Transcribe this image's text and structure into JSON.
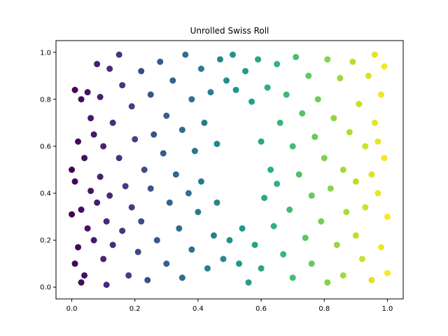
{
  "chart_data": {
    "type": "scatter",
    "title": "Unrolled Swiss Roll",
    "xlabel": "",
    "ylabel": "",
    "xlim": [
      -0.05,
      1.05
    ],
    "ylim": [
      -0.05,
      1.05
    ],
    "xticks": [
      "0.0",
      "0.2",
      "0.4",
      "0.6",
      "0.8",
      "1.0"
    ],
    "yticks": [
      "0.0",
      "0.2",
      "0.4",
      "0.6",
      "0.8",
      "1.0"
    ],
    "grid": false,
    "colormap": "viridis",
    "color_by": "x",
    "hole": {
      "x": [
        0.47,
        0.59
      ],
      "y": [
        0.28,
        0.82
      ]
    },
    "points": [
      {
        "x": 0.01,
        "y": 0.84
      },
      {
        "x": 0.03,
        "y": 0.8
      },
      {
        "x": 0.02,
        "y": 0.62
      },
      {
        "x": 0.0,
        "y": 0.5
      },
      {
        "x": 0.01,
        "y": 0.45
      },
      {
        "x": 0.03,
        "y": 0.33
      },
      {
        "x": 0.0,
        "y": 0.31
      },
      {
        "x": 0.02,
        "y": 0.17
      },
      {
        "x": 0.01,
        "y": 0.1
      },
      {
        "x": 0.03,
        "y": 0.02
      },
      {
        "x": 0.05,
        "y": 0.83
      },
      {
        "x": 0.06,
        "y": 0.72
      },
      {
        "x": 0.04,
        "y": 0.55
      },
      {
        "x": 0.06,
        "y": 0.41
      },
      {
        "x": 0.05,
        "y": 0.25
      },
      {
        "x": 0.07,
        "y": 0.2
      },
      {
        "x": 0.04,
        "y": 0.05
      },
      {
        "x": 0.08,
        "y": 0.95
      },
      {
        "x": 0.07,
        "y": 0.65
      },
      {
        "x": 0.08,
        "y": 0.36
      },
      {
        "x": 0.09,
        "y": 0.81
      },
      {
        "x": 0.1,
        "y": 0.6
      },
      {
        "x": 0.09,
        "y": 0.47
      },
      {
        "x": 0.11,
        "y": 0.28
      },
      {
        "x": 0.1,
        "y": 0.12
      },
      {
        "x": 0.11,
        "y": 0.01
      },
      {
        "x": 0.12,
        "y": 0.93
      },
      {
        "x": 0.13,
        "y": 0.7
      },
      {
        "x": 0.12,
        "y": 0.39
      },
      {
        "x": 0.13,
        "y": 0.18
      },
      {
        "x": 0.15,
        "y": 0.99
      },
      {
        "x": 0.16,
        "y": 0.86
      },
      {
        "x": 0.15,
        "y": 0.55
      },
      {
        "x": 0.17,
        "y": 0.43
      },
      {
        "x": 0.16,
        "y": 0.24
      },
      {
        "x": 0.18,
        "y": 0.05
      },
      {
        "x": 0.19,
        "y": 0.77
      },
      {
        "x": 0.2,
        "y": 0.63
      },
      {
        "x": 0.19,
        "y": 0.34
      },
      {
        "x": 0.21,
        "y": 0.15
      },
      {
        "x": 0.22,
        "y": 0.92
      },
      {
        "x": 0.23,
        "y": 0.5
      },
      {
        "x": 0.22,
        "y": 0.28
      },
      {
        "x": 0.24,
        "y": 0.03
      },
      {
        "x": 0.25,
        "y": 0.82
      },
      {
        "x": 0.26,
        "y": 0.65
      },
      {
        "x": 0.25,
        "y": 0.42
      },
      {
        "x": 0.27,
        "y": 0.2
      },
      {
        "x": 0.28,
        "y": 0.96
      },
      {
        "x": 0.29,
        "y": 0.57
      },
      {
        "x": 0.3,
        "y": 0.73
      },
      {
        "x": 0.31,
        "y": 0.36
      },
      {
        "x": 0.3,
        "y": 0.1
      },
      {
        "x": 0.32,
        "y": 0.88
      },
      {
        "x": 0.33,
        "y": 0.48
      },
      {
        "x": 0.34,
        "y": 0.25
      },
      {
        "x": 0.35,
        "y": 0.67
      },
      {
        "x": 0.36,
        "y": 0.99
      },
      {
        "x": 0.35,
        "y": 0.04
      },
      {
        "x": 0.37,
        "y": 0.4
      },
      {
        "x": 0.38,
        "y": 0.8
      },
      {
        "x": 0.39,
        "y": 0.58
      },
      {
        "x": 0.38,
        "y": 0.16
      },
      {
        "x": 0.4,
        "y": 0.32
      },
      {
        "x": 0.41,
        "y": 0.93
      },
      {
        "x": 0.42,
        "y": 0.7
      },
      {
        "x": 0.41,
        "y": 0.45
      },
      {
        "x": 0.43,
        "y": 0.08
      },
      {
        "x": 0.44,
        "y": 0.83
      },
      {
        "x": 0.45,
        "y": 0.22
      },
      {
        "x": 0.46,
        "y": 0.61
      },
      {
        "x": 0.47,
        "y": 0.97
      },
      {
        "x": 0.46,
        "y": 0.36
      },
      {
        "x": 0.48,
        "y": 0.12
      },
      {
        "x": 0.49,
        "y": 0.88
      },
      {
        "x": 0.5,
        "y": 0.2
      },
      {
        "x": 0.51,
        "y": 0.99
      },
      {
        "x": 0.52,
        "y": 0.84
      },
      {
        "x": 0.53,
        "y": 0.1
      },
      {
        "x": 0.54,
        "y": 0.25
      },
      {
        "x": 0.55,
        "y": 0.92
      },
      {
        "x": 0.56,
        "y": 0.02
      },
      {
        "x": 0.57,
        "y": 0.79
      },
      {
        "x": 0.58,
        "y": 0.18
      },
      {
        "x": 0.59,
        "y": 0.97
      },
      {
        "x": 0.6,
        "y": 0.62
      },
      {
        "x": 0.61,
        "y": 0.38
      },
      {
        "x": 0.6,
        "y": 0.08
      },
      {
        "x": 0.62,
        "y": 0.85
      },
      {
        "x": 0.63,
        "y": 0.5
      },
      {
        "x": 0.64,
        "y": 0.26
      },
      {
        "x": 0.65,
        "y": 0.95
      },
      {
        "x": 0.66,
        "y": 0.7
      },
      {
        "x": 0.65,
        "y": 0.44
      },
      {
        "x": 0.67,
        "y": 0.14
      },
      {
        "x": 0.68,
        "y": 0.82
      },
      {
        "x": 0.69,
        "y": 0.33
      },
      {
        "x": 0.7,
        "y": 0.6
      },
      {
        "x": 0.71,
        "y": 0.98
      },
      {
        "x": 0.7,
        "y": 0.04
      },
      {
        "x": 0.72,
        "y": 0.48
      },
      {
        "x": 0.73,
        "y": 0.74
      },
      {
        "x": 0.74,
        "y": 0.21
      },
      {
        "x": 0.75,
        "y": 0.9
      },
      {
        "x": 0.76,
        "y": 0.39
      },
      {
        "x": 0.77,
        "y": 0.64
      },
      {
        "x": 0.76,
        "y": 0.1
      },
      {
        "x": 0.78,
        "y": 0.8
      },
      {
        "x": 0.79,
        "y": 0.28
      },
      {
        "x": 0.8,
        "y": 0.55
      },
      {
        "x": 0.81,
        "y": 0.97
      },
      {
        "x": 0.82,
        "y": 0.42
      },
      {
        "x": 0.81,
        "y": 0.02
      },
      {
        "x": 0.83,
        "y": 0.72
      },
      {
        "x": 0.84,
        "y": 0.18
      },
      {
        "x": 0.85,
        "y": 0.89
      },
      {
        "x": 0.86,
        "y": 0.5
      },
      {
        "x": 0.87,
        "y": 0.32
      },
      {
        "x": 0.86,
        "y": 0.05
      },
      {
        "x": 0.88,
        "y": 0.66
      },
      {
        "x": 0.89,
        "y": 0.96
      },
      {
        "x": 0.9,
        "y": 0.22
      },
      {
        "x": 0.91,
        "y": 0.78
      },
      {
        "x": 0.9,
        "y": 0.45
      },
      {
        "x": 0.92,
        "y": 0.12
      },
      {
        "x": 0.93,
        "y": 0.6
      },
      {
        "x": 0.94,
        "y": 0.9
      },
      {
        "x": 0.93,
        "y": 0.34
      },
      {
        "x": 0.95,
        "y": 0.03
      },
      {
        "x": 0.96,
        "y": 0.7
      },
      {
        "x": 0.97,
        "y": 0.4
      },
      {
        "x": 0.96,
        "y": 0.99
      },
      {
        "x": 0.98,
        "y": 0.17
      },
      {
        "x": 0.99,
        "y": 0.55
      },
      {
        "x": 0.98,
        "y": 0.82
      },
      {
        "x": 1.0,
        "y": 0.3
      },
      {
        "x": 1.0,
        "y": 0.06
      },
      {
        "x": 0.99,
        "y": 0.94
      },
      {
        "x": 0.97,
        "y": 0.62
      },
      {
        "x": 0.95,
        "y": 0.48
      }
    ]
  }
}
